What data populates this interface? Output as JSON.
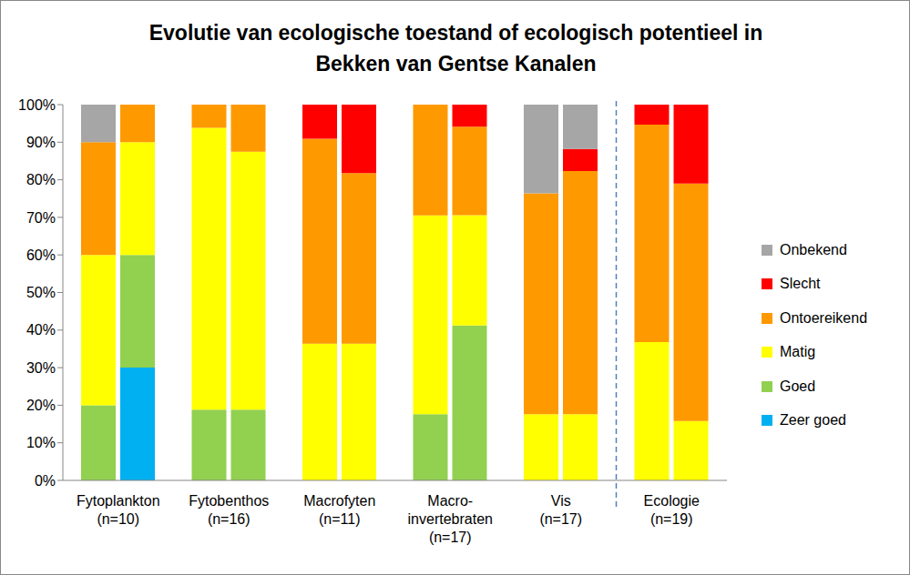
{
  "chart_data": {
    "type": "bar",
    "stacked": true,
    "grid": false,
    "legend": "right",
    "title": "Evolutie van ecologische toestand of ecologisch potentieel in\nBekken van Gentse Kanalen",
    "categories": [
      "Fytoplankton\n(n=10)",
      "Fytobenthos\n(n=16)",
      "Macrofyten\n(n=11)",
      "Macro-\ninvertebraten\n(n=17)",
      "Vis\n(n=17)",
      "Ecologie\n(n=19)"
    ],
    "series": [
      {
        "name": "Zeer goed",
        "color": "#00b0f0",
        "values": [
          [
            0,
            30
          ],
          [
            0,
            0
          ],
          [
            0,
            0
          ],
          [
            0,
            0
          ],
          [
            0,
            0
          ],
          [
            0,
            0
          ]
        ]
      },
      {
        "name": "Goed",
        "color": "#92d050",
        "values": [
          [
            20,
            30
          ],
          [
            18.8,
            18.8
          ],
          [
            0,
            0
          ],
          [
            17.6,
            41.2
          ],
          [
            0,
            0
          ],
          [
            0,
            0
          ]
        ]
      },
      {
        "name": "Matig",
        "color": "#ffff00",
        "values": [
          [
            40,
            30
          ],
          [
            75,
            68.7
          ],
          [
            36.4,
            36.4
          ],
          [
            52.9,
            29.4
          ],
          [
            17.6,
            17.6
          ],
          [
            36.8,
            15.8
          ]
        ]
      },
      {
        "name": "Ontoereikend",
        "color": "#ff9900",
        "values": [
          [
            30,
            10
          ],
          [
            6.2,
            12.5
          ],
          [
            54.5,
            45.4
          ],
          [
            29.5,
            23.5
          ],
          [
            58.8,
            64.7
          ],
          [
            57.9,
            63.2
          ]
        ]
      },
      {
        "name": "Slecht",
        "color": "#ff0000",
        "values": [
          [
            0,
            0
          ],
          [
            0,
            0
          ],
          [
            9.1,
            18.2
          ],
          [
            0,
            5.9
          ],
          [
            0,
            5.9
          ],
          [
            5.3,
            21
          ]
        ]
      },
      {
        "name": "Onbekend",
        "color": "#a6a6a6",
        "values": [
          [
            10,
            0
          ],
          [
            0,
            0
          ],
          [
            0,
            0
          ],
          [
            0,
            0
          ],
          [
            23.6,
            11.8
          ],
          [
            0,
            0
          ]
        ]
      }
    ],
    "ylim": [
      0,
      100
    ],
    "yticks": [
      {
        "value": 0,
        "label": "0%"
      },
      {
        "value": 10,
        "label": "10%"
      },
      {
        "value": 20,
        "label": "20%"
      },
      {
        "value": 30,
        "label": "30%"
      },
      {
        "value": 40,
        "label": "40%"
      },
      {
        "value": 50,
        "label": "50%"
      },
      {
        "value": 60,
        "label": "60%"
      },
      {
        "value": 70,
        "label": "70%"
      },
      {
        "value": 80,
        "label": "80%"
      },
      {
        "value": 90,
        "label": "90%"
      },
      {
        "value": 100,
        "label": "100%"
      }
    ]
  }
}
